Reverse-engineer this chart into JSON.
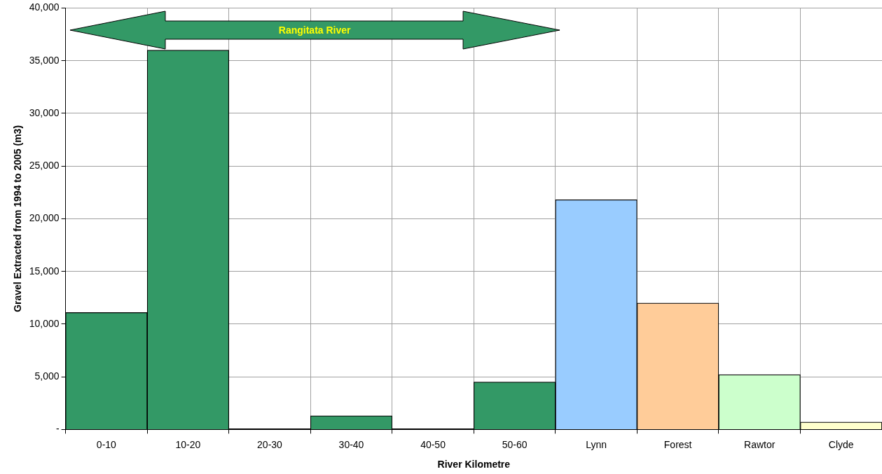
{
  "chart_data": {
    "type": "bar",
    "xlabel": "River Kilometre",
    "ylabel": "Gravel Extracted from 1994 to 2005 (m3)",
    "categories": [
      "0-10",
      "10-20",
      "20-30",
      "30-40",
      "40-50",
      "50-60",
      "Lynn",
      "Forest",
      "Rawtor",
      "Clyde"
    ],
    "values": [
      11100,
      36000,
      0,
      1300,
      0,
      4500,
      21800,
      12000,
      5200,
      700
    ],
    "colors": [
      "#339966",
      "#339966",
      "#339966",
      "#339966",
      "#339966",
      "#339966",
      "#99ccff",
      "#ffcc99",
      "#ccffcc",
      "#ffffcc"
    ],
    "ylim": [
      0,
      40000
    ],
    "yticks": [
      {
        "value": 0,
        "label": "-"
      },
      {
        "value": 5000,
        "label": "5,000"
      },
      {
        "value": 10000,
        "label": "10,000"
      },
      {
        "value": 15000,
        "label": "15,000"
      },
      {
        "value": 20000,
        "label": "20,000"
      },
      {
        "value": 25000,
        "label": "25,000"
      },
      {
        "value": 30000,
        "label": "30,000"
      },
      {
        "value": 35000,
        "label": "35,000"
      },
      {
        "value": 40000,
        "label": "40,000"
      }
    ],
    "grid": true,
    "legend": false,
    "annotations": [
      "Rangitata River"
    ]
  }
}
